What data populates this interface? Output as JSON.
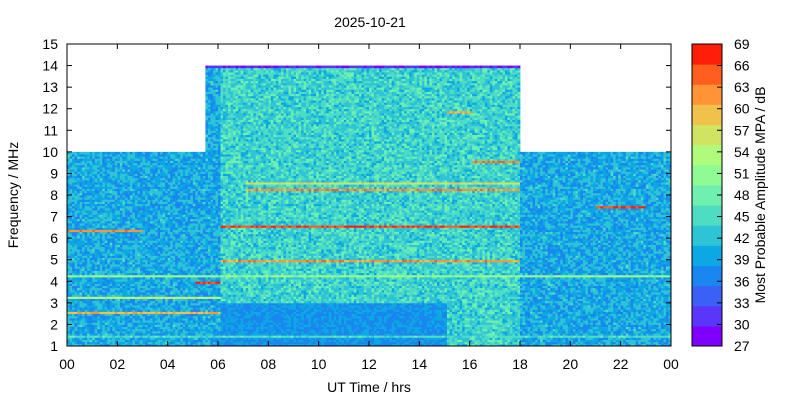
{
  "chart_data": {
    "type": "heatmap",
    "title": "2025-10-21",
    "xlabel": "UT Time / hrs",
    "ylabel": "Frequency / MHz",
    "colorbar_label": "Most Probable Amplitude MPA / dB",
    "xlim": [
      0,
      24
    ],
    "ylim": [
      1,
      15
    ],
    "x_ticks": [
      "00",
      "02",
      "04",
      "06",
      "08",
      "10",
      "12",
      "14",
      "16",
      "18",
      "20",
      "22",
      "00"
    ],
    "y_ticks": [
      "1",
      "2",
      "3",
      "4",
      "5",
      "6",
      "7",
      "8",
      "9",
      "10",
      "11",
      "12",
      "13",
      "14",
      "15"
    ],
    "colorbar_ticks": [
      "27",
      "30",
      "33",
      "36",
      "39",
      "42",
      "45",
      "48",
      "51",
      "54",
      "57",
      "60",
      "63",
      "66",
      "69"
    ],
    "colorbar_range": [
      27,
      69
    ],
    "colormap": [
      "#7f00ff",
      "#5a36fb",
      "#3a60f6",
      "#1a86ef",
      "#0ca8e3",
      "#2ec4d6",
      "#4edcc5",
      "#6ff0ae",
      "#8ffb95",
      "#b0fb7b",
      "#d0e363",
      "#f0c24c",
      "#ff9436",
      "#ff5e1f",
      "#ff1e09"
    ],
    "coverage": [
      {
        "from_hr": 0,
        "to_hr": 5.5,
        "max_freq_mhz": 10
      },
      {
        "from_hr": 5.5,
        "to_hr": 18,
        "max_freq_mhz": 14
      },
      {
        "from_hr": 18,
        "to_hr": 24,
        "max_freq_mhz": 10
      }
    ],
    "background_level_db": 40,
    "bands": [
      {
        "freq_mhz": 1.4,
        "from_hr": 0,
        "to_hr": 24,
        "level_db": 45
      },
      {
        "freq_mhz": 2.5,
        "from_hr": 0,
        "to_hr": 6,
        "level_db": 60
      },
      {
        "freq_mhz": 3.2,
        "from_hr": 0,
        "to_hr": 6,
        "level_db": 55
      },
      {
        "freq_mhz": 3.9,
        "from_hr": 5,
        "to_hr": 6,
        "level_db": 66
      },
      {
        "freq_mhz": 4.2,
        "from_hr": 0,
        "to_hr": 24,
        "level_db": 51
      },
      {
        "freq_mhz": 4.9,
        "from_hr": 6,
        "to_hr": 18,
        "level_db": 62
      },
      {
        "freq_mhz": 6.3,
        "from_hr": 0,
        "to_hr": 3,
        "level_db": 63
      },
      {
        "freq_mhz": 6.5,
        "from_hr": 6,
        "to_hr": 18,
        "level_db": 66
      },
      {
        "freq_mhz": 7.4,
        "from_hr": 21,
        "to_hr": 23,
        "level_db": 66
      },
      {
        "freq_mhz": 8.2,
        "from_hr": 7,
        "to_hr": 18,
        "level_db": 62
      },
      {
        "freq_mhz": 8.5,
        "from_hr": 7,
        "to_hr": 18,
        "level_db": 57
      },
      {
        "freq_mhz": 9.5,
        "from_hr": 16,
        "to_hr": 18,
        "level_db": 63
      },
      {
        "freq_mhz": 11.8,
        "from_hr": 15,
        "to_hr": 16,
        "level_db": 60
      },
      {
        "freq_mhz": 13.9,
        "from_hr": 5.5,
        "to_hr": 18,
        "level_db": 30
      }
    ]
  }
}
